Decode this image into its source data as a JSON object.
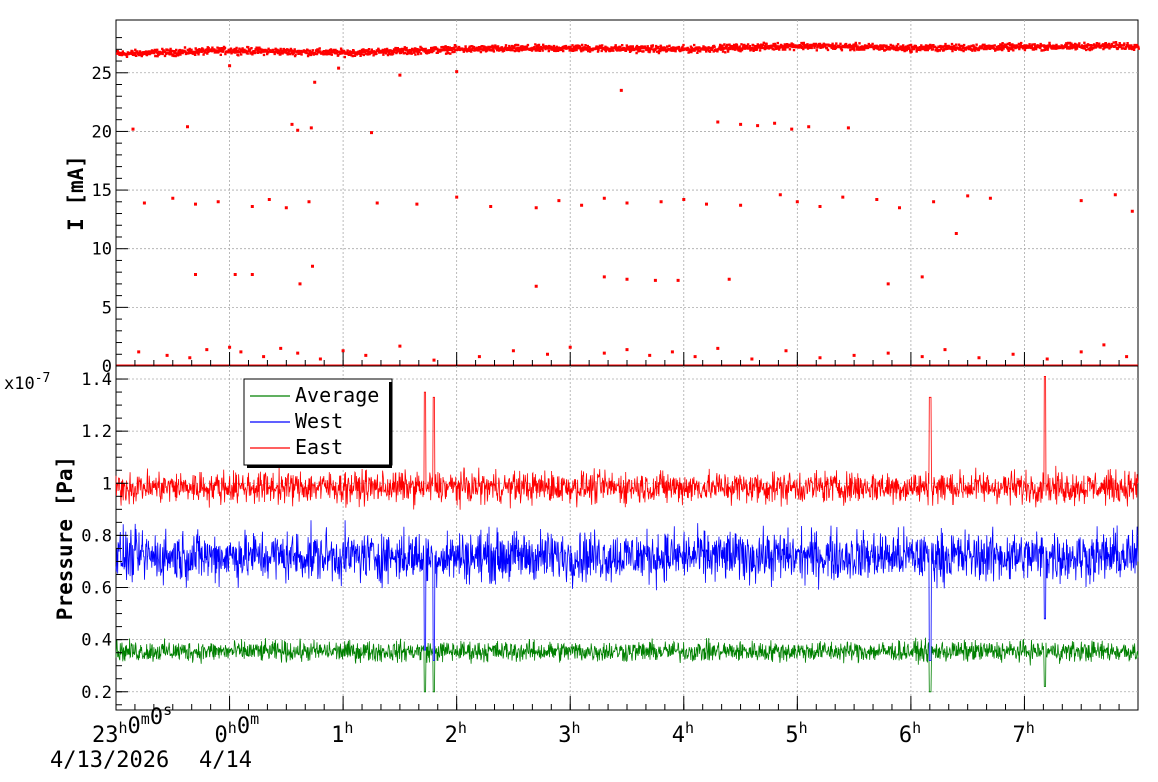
{
  "chart_data": [
    {
      "type": "scatter",
      "ylabel": "I [mA]",
      "ylim": [
        0,
        29.5
      ],
      "yticks": [
        0,
        5,
        10,
        15,
        20,
        25
      ],
      "grid": true,
      "color": "#ff0000",
      "x_unit": "hours since 23:00",
      "xlim": [
        -1,
        8
      ],
      "series": [
        {
          "band": "beam-current",
          "trend": [
            [
              -1,
              26.6
            ],
            [
              0,
              26.9
            ],
            [
              1,
              26.7
            ],
            [
              2,
              27.0
            ],
            [
              3,
              27.1
            ],
            [
              4,
              27.0
            ],
            [
              5,
              27.3
            ],
            [
              6,
              27.1
            ],
            [
              7,
              27.2
            ],
            [
              8,
              27.3
            ]
          ],
          "scatter": 0.35
        }
      ],
      "outliers": [
        [
          -0.85,
          20.2
        ],
        [
          -0.37,
          20.4
        ],
        [
          0.0,
          25.6
        ],
        [
          0.55,
          20.6
        ],
        [
          0.6,
          20.1
        ],
        [
          0.72,
          20.3
        ],
        [
          0.75,
          24.2
        ],
        [
          0.96,
          25.4
        ],
        [
          1.25,
          19.9
        ],
        [
          1.5,
          24.8
        ],
        [
          2.0,
          25.1
        ],
        [
          3.45,
          23.5
        ],
        [
          4.3,
          20.8
        ],
        [
          4.5,
          20.6
        ],
        [
          4.65,
          20.5
        ],
        [
          4.8,
          20.7
        ],
        [
          4.95,
          20.2
        ],
        [
          5.1,
          20.4
        ],
        [
          5.45,
          20.3
        ],
        [
          -0.75,
          13.9
        ],
        [
          -0.5,
          14.3
        ],
        [
          -0.3,
          13.8
        ],
        [
          -0.1,
          14.0
        ],
        [
          0.2,
          13.6
        ],
        [
          0.35,
          14.2
        ],
        [
          0.5,
          13.5
        ],
        [
          0.7,
          14.0
        ],
        [
          1.3,
          13.9
        ],
        [
          1.65,
          13.8
        ],
        [
          2.0,
          14.4
        ],
        [
          2.3,
          13.6
        ],
        [
          2.7,
          13.5
        ],
        [
          2.9,
          14.1
        ],
        [
          3.1,
          13.7
        ],
        [
          3.3,
          14.3
        ],
        [
          3.5,
          13.9
        ],
        [
          3.8,
          14.0
        ],
        [
          4.0,
          14.2
        ],
        [
          4.2,
          13.8
        ],
        [
          4.5,
          13.7
        ],
        [
          4.85,
          14.6
        ],
        [
          5.0,
          14.0
        ],
        [
          5.2,
          13.6
        ],
        [
          5.4,
          14.4
        ],
        [
          5.7,
          14.2
        ],
        [
          5.9,
          13.5
        ],
        [
          6.2,
          14.0
        ],
        [
          6.4,
          11.3
        ],
        [
          6.5,
          14.5
        ],
        [
          6.7,
          14.3
        ],
        [
          7.5,
          14.1
        ],
        [
          7.8,
          14.6
        ],
        [
          7.95,
          13.2
        ],
        [
          -0.3,
          7.8
        ],
        [
          0.05,
          7.8
        ],
        [
          0.2,
          7.8
        ],
        [
          0.62,
          7.0
        ],
        [
          0.73,
          8.5
        ],
        [
          2.7,
          6.8
        ],
        [
          3.3,
          7.6
        ],
        [
          3.5,
          7.4
        ],
        [
          3.75,
          7.3
        ],
        [
          3.95,
          7.3
        ],
        [
          4.4,
          7.4
        ],
        [
          5.8,
          7.0
        ],
        [
          6.1,
          7.6
        ],
        [
          -0.8,
          1.2
        ],
        [
          -0.55,
          0.9
        ],
        [
          -0.35,
          0.7
        ],
        [
          -0.2,
          1.4
        ],
        [
          0.0,
          1.6
        ],
        [
          0.1,
          1.2
        ],
        [
          0.3,
          0.8
        ],
        [
          0.45,
          1.5
        ],
        [
          0.6,
          1.1
        ],
        [
          0.8,
          0.6
        ],
        [
          1.0,
          1.3
        ],
        [
          1.2,
          0.9
        ],
        [
          1.5,
          1.7
        ],
        [
          1.8,
          0.5
        ],
        [
          2.2,
          0.8
        ],
        [
          2.5,
          1.3
        ],
        [
          2.8,
          1.0
        ],
        [
          3.0,
          1.6
        ],
        [
          3.3,
          1.1
        ],
        [
          3.5,
          1.4
        ],
        [
          3.7,
          0.9
        ],
        [
          3.9,
          1.2
        ],
        [
          4.1,
          0.8
        ],
        [
          4.3,
          1.5
        ],
        [
          4.6,
          0.6
        ],
        [
          4.9,
          1.3
        ],
        [
          5.2,
          0.7
        ],
        [
          5.5,
          0.9
        ],
        [
          5.8,
          1.1
        ],
        [
          6.1,
          0.8
        ],
        [
          6.3,
          1.4
        ],
        [
          6.6,
          0.7
        ],
        [
          6.9,
          1.0
        ],
        [
          7.2,
          0.6
        ],
        [
          7.5,
          1.2
        ],
        [
          7.7,
          1.8
        ],
        [
          7.9,
          0.8
        ]
      ],
      "baseline": 0
    },
    {
      "type": "line",
      "ylabel": "Pressure [Pa]",
      "y_exponent": "x10",
      "y_exponent_power": "-7",
      "ylim": [
        0.13,
        1.45
      ],
      "yticks": [
        0.2,
        0.4,
        0.6,
        0.8,
        1,
        1.2,
        1.4
      ],
      "grid": true,
      "legend_position": "top-left",
      "x_unit": "hours since 23:00",
      "xlim": [
        -1,
        8
      ],
      "series": [
        {
          "name": "Average",
          "color": "#008000",
          "mean": 0.355,
          "noise": 0.045,
          "spikes": [
            [
              1.72,
              0.2
            ],
            [
              1.8,
              0.2
            ],
            [
              6.17,
              0.2
            ],
            [
              7.18,
              0.22
            ]
          ]
        },
        {
          "name": "West",
          "color": "#0000ff",
          "mean": 0.72,
          "noise": 0.11,
          "spikes": [
            [
              1.72,
              0.36
            ],
            [
              1.8,
              0.32
            ],
            [
              6.17,
              0.32
            ],
            [
              7.18,
              0.48
            ]
          ]
        },
        {
          "name": "East",
          "color": "#ff0000",
          "mean": 0.985,
          "noise": 0.07,
          "spikes": [
            [
              1.72,
              1.35
            ],
            [
              1.8,
              1.33
            ],
            [
              6.17,
              1.33
            ],
            [
              7.18,
              1.41
            ]
          ]
        }
      ]
    }
  ],
  "x_axis": {
    "ticks": [
      {
        "hour": -1,
        "main": "23",
        "sup": "h",
        "main2": "0",
        "sup2": "m",
        "main3": "0",
        "sup3": "s"
      },
      {
        "hour": 0,
        "main": "0",
        "sup": "h",
        "main2": "0",
        "sup2": "m"
      },
      {
        "hour": 1,
        "main": "1",
        "sup": "h"
      },
      {
        "hour": 2,
        "main": "2",
        "sup": "h"
      },
      {
        "hour": 3,
        "main": "3",
        "sup": "h"
      },
      {
        "hour": 4,
        "main": "4",
        "sup": "h"
      },
      {
        "hour": 5,
        "main": "5",
        "sup": "h"
      },
      {
        "hour": 6,
        "main": "6",
        "sup": "h"
      },
      {
        "hour": 7,
        "main": "7",
        "sup": "h"
      }
    ],
    "date_start": "4/13/2026",
    "date_next": "4/14"
  }
}
